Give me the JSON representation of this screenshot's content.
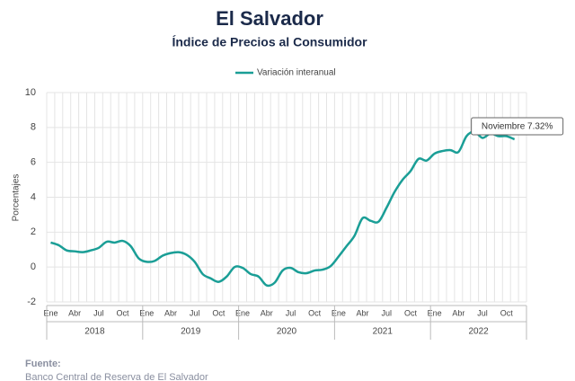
{
  "chart_data": {
    "type": "line",
    "title": "El Salvador",
    "subtitle": "Índice de Precios al Consumidor",
    "y_label": "Porcentajes",
    "categories": [
      "Ene",
      null,
      null,
      "Abr",
      null,
      null,
      "Jul",
      null,
      null,
      "Oct",
      null,
      null,
      "Ene",
      null,
      null,
      "Abr",
      null,
      null,
      "Jul",
      null,
      null,
      "Oct",
      null,
      null,
      "Ene",
      null,
      null,
      "Abr",
      null,
      null,
      "Jul",
      null,
      null,
      "Oct",
      null,
      null,
      "Ene",
      null,
      null,
      "Abr",
      null,
      null,
      "Jul",
      null,
      null,
      "Oct",
      null,
      null,
      "Ene",
      null,
      null,
      "Abr",
      null,
      null,
      "Jul",
      null,
      null,
      "Oct",
      null
    ],
    "years": [
      "2018",
      "2019",
      "2020",
      "2021",
      "2022"
    ],
    "series": [
      {
        "name": "Variación interanual",
        "color": "#1a9e96",
        "values": [
          1.4,
          1.25,
          0.95,
          0.9,
          0.85,
          0.95,
          1.1,
          1.45,
          1.4,
          1.5,
          1.2,
          0.5,
          0.3,
          0.35,
          0.65,
          0.8,
          0.85,
          0.7,
          0.3,
          -0.4,
          -0.65,
          -0.85,
          -0.55,
          0.0,
          -0.05,
          -0.4,
          -0.55,
          -1.05,
          -0.9,
          -0.2,
          -0.05,
          -0.3,
          -0.35,
          -0.2,
          -0.15,
          0.05,
          0.6,
          1.2,
          1.8,
          2.8,
          2.65,
          2.6,
          3.4,
          4.3,
          5.0,
          5.5,
          6.2,
          6.1,
          6.5,
          6.65,
          6.7,
          6.6,
          7.5,
          7.75,
          7.4,
          7.65,
          7.5,
          7.5,
          7.32
        ]
      }
    ],
    "annotation": "Noviembre 7.32%",
    "ylim": [
      -2,
      10
    ],
    "yticks": [
      -2,
      0,
      2,
      4,
      6,
      8,
      10
    ],
    "grid": true,
    "source_label": "Fuente:",
    "source": "Banco Central de Reserva de El Salvador"
  }
}
